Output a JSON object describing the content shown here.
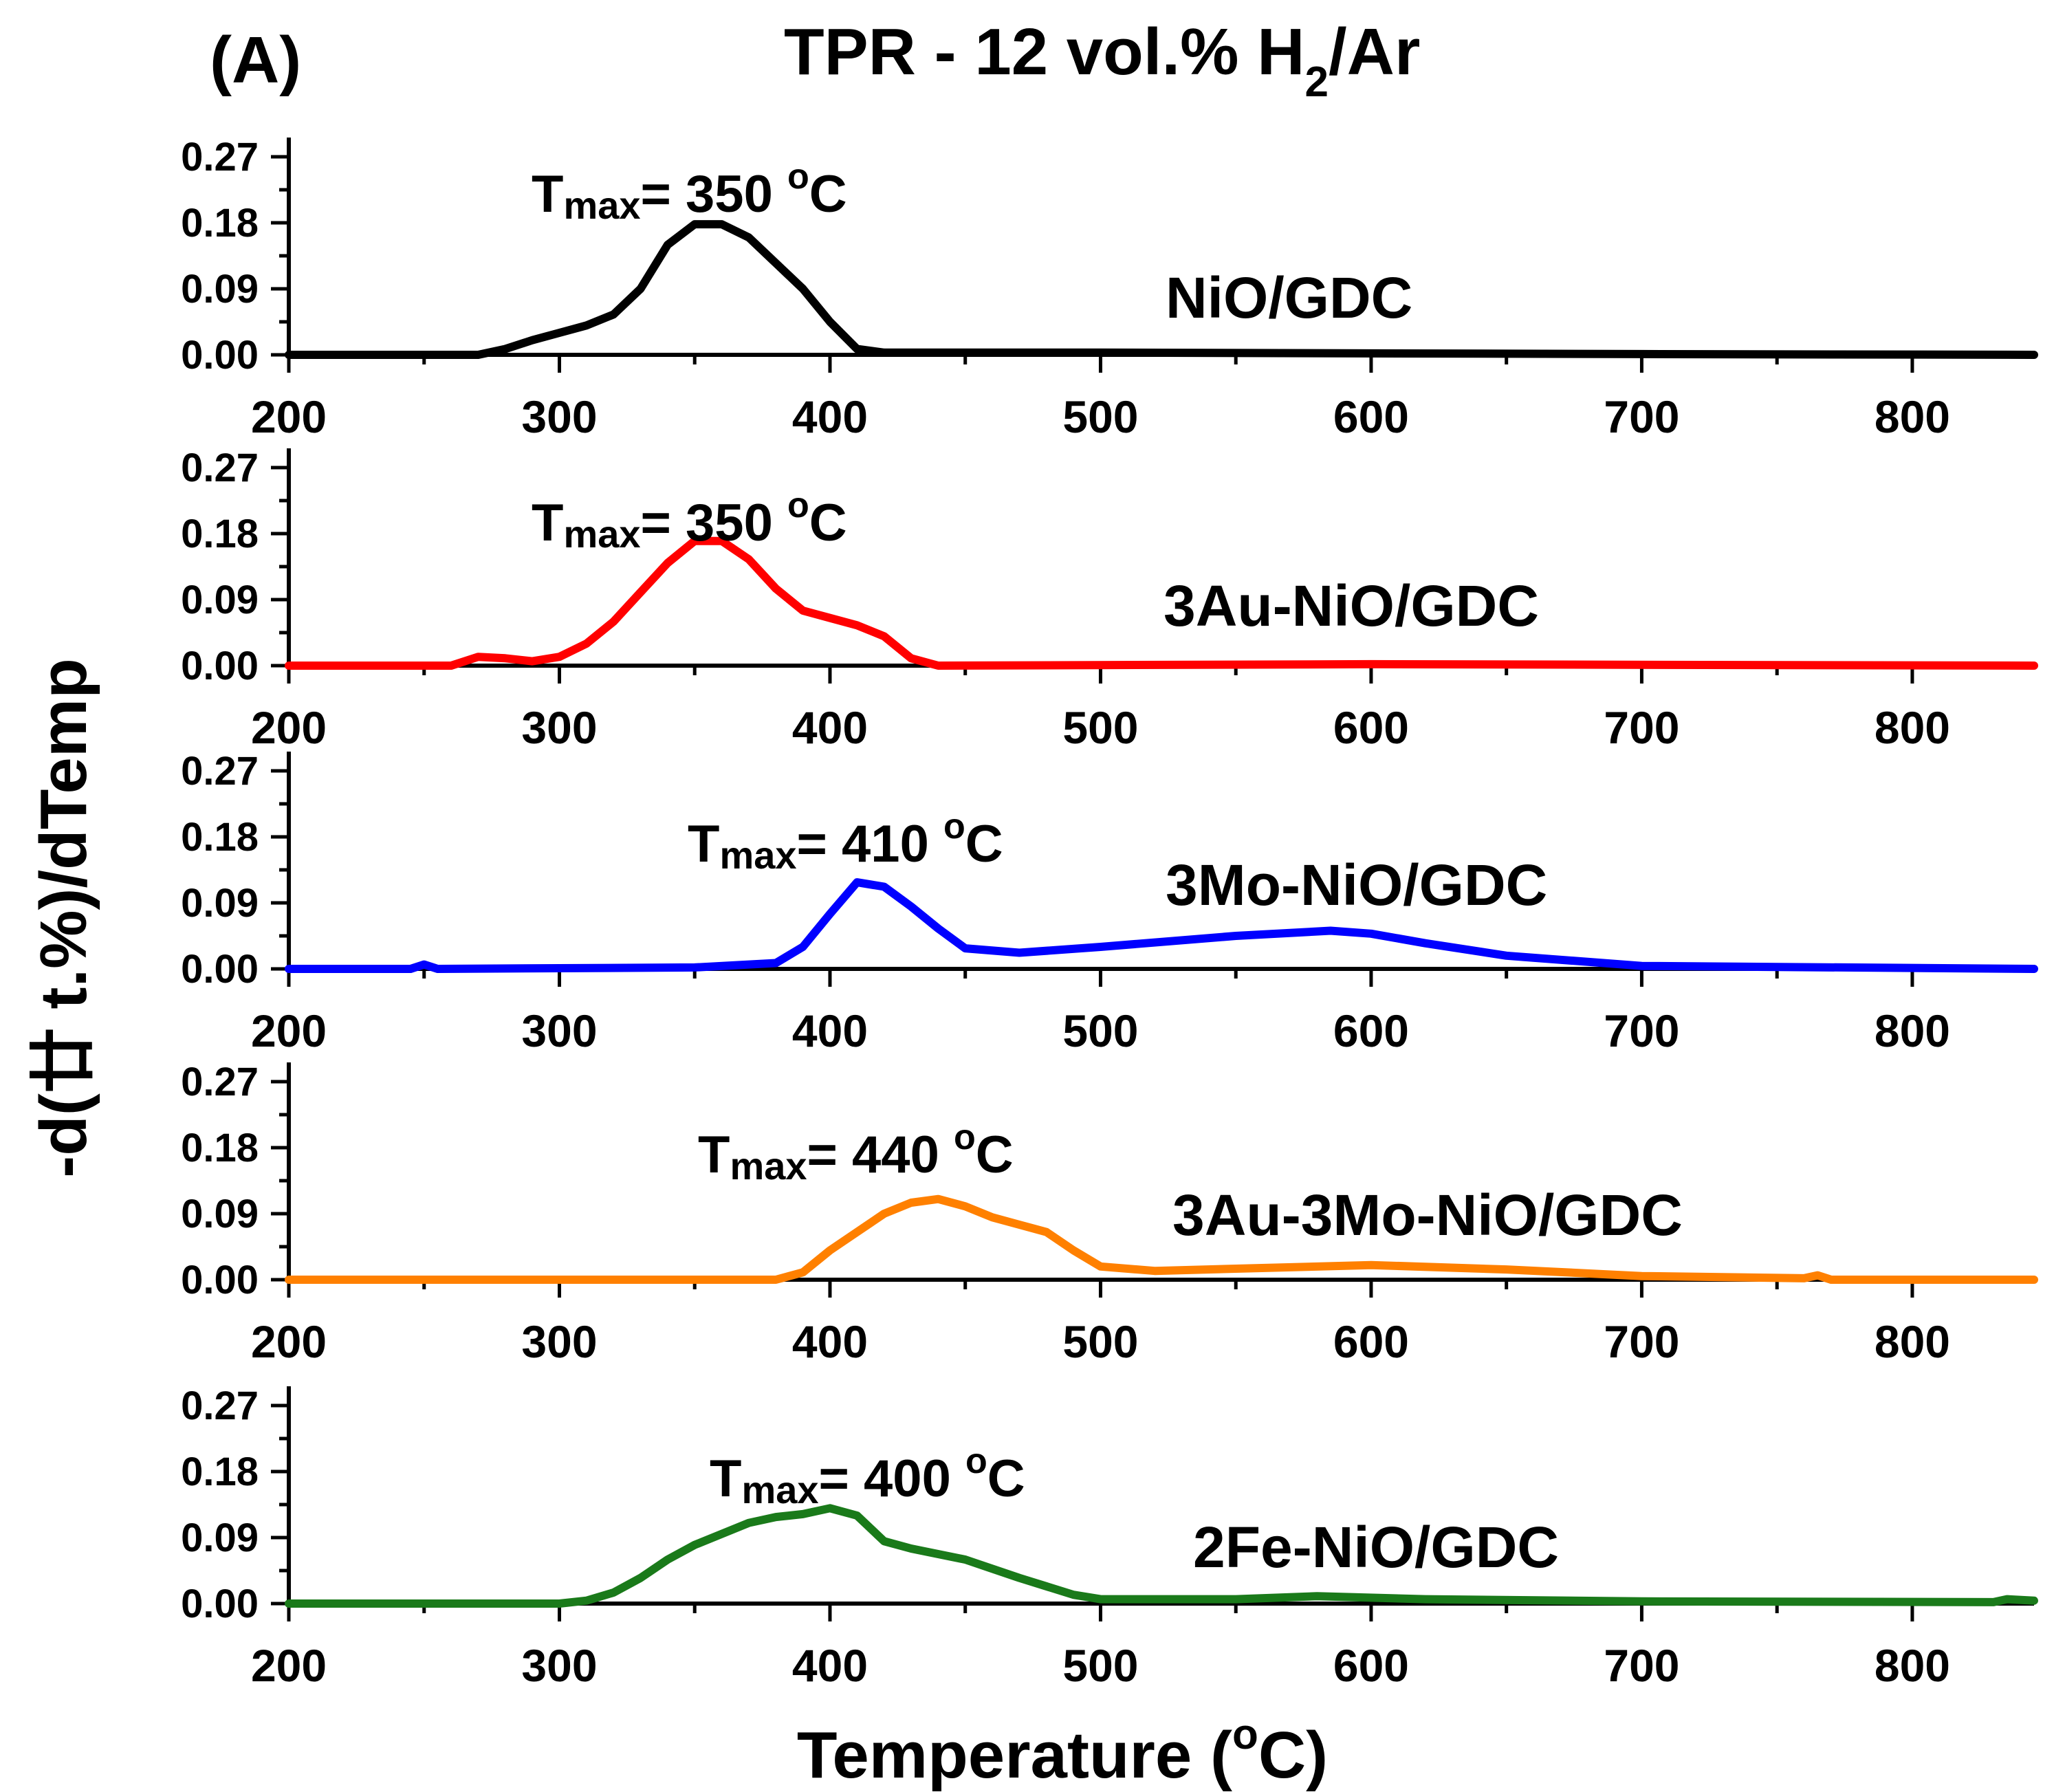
{
  "chart_data": {
    "type": "line",
    "panel_label": "(A)",
    "title": {
      "main": "TPR - 12 vol.% H",
      "subscript": "2",
      "suffix": "/Ar"
    },
    "xlabel": {
      "main": "Temperature (",
      "superscript": "o",
      "suffix": "C)"
    },
    "ylabel": "-d(廿  t.%)/dTemp",
    "xlim": [
      200,
      845
    ],
    "ylim": [
      0,
      0.27
    ],
    "x_ticks": [
      "200",
      "300",
      "400",
      "500",
      "600",
      "700",
      "800"
    ],
    "x_tick_values": [
      200,
      300,
      400,
      500,
      600,
      700,
      800
    ],
    "y_ticks": [
      "0.00",
      "0.09",
      "0.18",
      "0.27"
    ],
    "y_tick_values": [
      0,
      0.09,
      0.18,
      0.27
    ],
    "annotation_units": {
      "superscript": "o",
      "suffix": "C"
    },
    "series": [
      {
        "name": "NiO/GDC",
        "color": "#000000",
        "tmax_label": {
          "t": "T",
          "sub": "max",
          "value": "= 350 "
        },
        "tmax_x": 350,
        "points": [
          [
            200,
            0
          ],
          [
            270,
            0
          ],
          [
            280,
            0.008
          ],
          [
            290,
            0.02
          ],
          [
            300,
            0.03
          ],
          [
            310,
            0.04
          ],
          [
            320,
            0.055
          ],
          [
            330,
            0.09
          ],
          [
            340,
            0.15
          ],
          [
            350,
            0.178
          ],
          [
            360,
            0.178
          ],
          [
            370,
            0.16
          ],
          [
            380,
            0.125
          ],
          [
            390,
            0.09
          ],
          [
            400,
            0.045
          ],
          [
            410,
            0.008
          ],
          [
            420,
            0.003
          ],
          [
            500,
            0.003
          ],
          [
            700,
            0.001
          ],
          [
            845,
            0
          ]
        ]
      },
      {
        "name": "3Au-NiO/GDC",
        "color": "#ff0000",
        "tmax_label": {
          "t": "T",
          "sub": "max",
          "value": "= 350 "
        },
        "tmax_x": 350,
        "points": [
          [
            200,
            0
          ],
          [
            260,
            0
          ],
          [
            270,
            0.012
          ],
          [
            280,
            0.01
          ],
          [
            290,
            0.006
          ],
          [
            300,
            0.012
          ],
          [
            310,
            0.03
          ],
          [
            320,
            0.06
          ],
          [
            330,
            0.1
          ],
          [
            340,
            0.14
          ],
          [
            350,
            0.17
          ],
          [
            360,
            0.17
          ],
          [
            370,
            0.145
          ],
          [
            380,
            0.105
          ],
          [
            390,
            0.075
          ],
          [
            400,
            0.065
          ],
          [
            410,
            0.055
          ],
          [
            420,
            0.04
          ],
          [
            430,
            0.01
          ],
          [
            440,
            0
          ],
          [
            600,
            0.002
          ],
          [
            845,
            0
          ]
        ]
      },
      {
        "name": "3Mo-NiO/GDC",
        "color": "#0000ff",
        "tmax_label": {
          "t": "T",
          "sub": "max",
          "value": "= 410 "
        },
        "tmax_x": 410,
        "points": [
          [
            200,
            0
          ],
          [
            245,
            0
          ],
          [
            250,
            0.006
          ],
          [
            255,
            0
          ],
          [
            350,
            0.002
          ],
          [
            380,
            0.008
          ],
          [
            390,
            0.03
          ],
          [
            400,
            0.075
          ],
          [
            410,
            0.118
          ],
          [
            420,
            0.112
          ],
          [
            430,
            0.085
          ],
          [
            440,
            0.055
          ],
          [
            450,
            0.028
          ],
          [
            470,
            0.022
          ],
          [
            500,
            0.03
          ],
          [
            550,
            0.045
          ],
          [
            585,
            0.052
          ],
          [
            600,
            0.048
          ],
          [
            620,
            0.035
          ],
          [
            650,
            0.018
          ],
          [
            700,
            0.004
          ],
          [
            845,
            0
          ]
        ]
      },
      {
        "name": "3Au-3Mo-NiO/GDC",
        "color": "#ff8000",
        "tmax_label": {
          "t": "T",
          "sub": "max",
          "value": "= 440 "
        },
        "tmax_x": 440,
        "points": [
          [
            200,
            0
          ],
          [
            380,
            0
          ],
          [
            390,
            0.01
          ],
          [
            400,
            0.04
          ],
          [
            410,
            0.065
          ],
          [
            420,
            0.09
          ],
          [
            430,
            0.105
          ],
          [
            440,
            0.11
          ],
          [
            450,
            0.1
          ],
          [
            460,
            0.085
          ],
          [
            470,
            0.075
          ],
          [
            480,
            0.065
          ],
          [
            490,
            0.04
          ],
          [
            500,
            0.018
          ],
          [
            520,
            0.012
          ],
          [
            600,
            0.02
          ],
          [
            650,
            0.014
          ],
          [
            700,
            0.005
          ],
          [
            760,
            0.002
          ],
          [
            765,
            0.006
          ],
          [
            770,
            0
          ],
          [
            845,
            0
          ]
        ]
      },
      {
        "name": "2Fe-NiO/GDC",
        "color": "#1a7a1a",
        "tmax_label": {
          "t": "T",
          "sub": "max",
          "value": "= 400 "
        },
        "tmax_x": 400,
        "points": [
          [
            200,
            0
          ],
          [
            300,
            0
          ],
          [
            310,
            0.004
          ],
          [
            320,
            0.015
          ],
          [
            330,
            0.035
          ],
          [
            340,
            0.06
          ],
          [
            350,
            0.08
          ],
          [
            360,
            0.095
          ],
          [
            370,
            0.11
          ],
          [
            380,
            0.118
          ],
          [
            390,
            0.122
          ],
          [
            400,
            0.13
          ],
          [
            410,
            0.12
          ],
          [
            420,
            0.085
          ],
          [
            430,
            0.075
          ],
          [
            450,
            0.06
          ],
          [
            470,
            0.035
          ],
          [
            490,
            0.012
          ],
          [
            500,
            0.006
          ],
          [
            550,
            0.006
          ],
          [
            580,
            0.01
          ],
          [
            620,
            0.006
          ],
          [
            700,
            0.003
          ],
          [
            830,
            0.002
          ],
          [
            835,
            0.006
          ],
          [
            845,
            0.004
          ]
        ]
      }
    ]
  }
}
